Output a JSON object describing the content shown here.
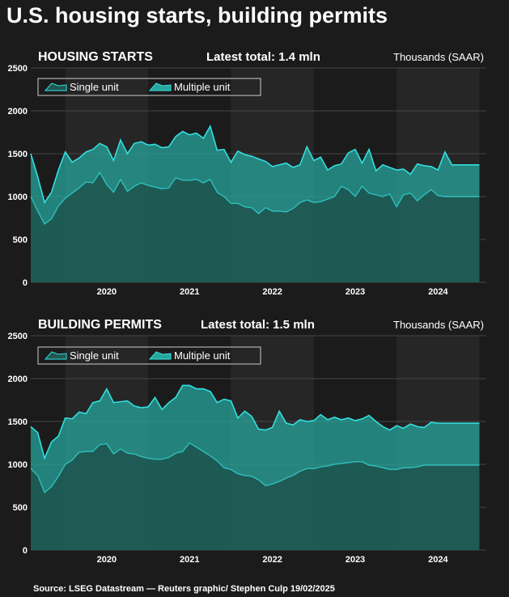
{
  "title": "U.S. housing starts, building permits",
  "source": "Source: LSEG Datastream — Reuters graphic/ Stephen Culp 19/02/2025",
  "colors": {
    "background": "#1b1b1b",
    "band": "#262626",
    "single_fill": "#1f5752",
    "multi_fill": "#27a69c",
    "line": "#34dfe0",
    "grid": "#555555"
  },
  "chart_data": [
    {
      "type": "area",
      "title": "HOUSING STARTS",
      "subtitle": "Latest total: 1.4 mln",
      "ylabel": "Thousands (SAAR)",
      "ylim": [
        0,
        2500
      ],
      "yticks": [
        0,
        500,
        1000,
        1500,
        2000,
        2500
      ],
      "xlim": [
        2019.583,
        2025.083
      ],
      "year_labels": [
        "2020",
        "2021",
        "2022",
        "2023",
        "2024"
      ],
      "legend": {
        "placement": "top-left",
        "entries": [
          "Single unit",
          "Multiple unit"
        ]
      },
      "grid": true,
      "x": [
        2019.583,
        2019.667,
        2019.75,
        2019.833,
        2019.917,
        2020.0,
        2020.083,
        2020.167,
        2020.25,
        2020.333,
        2020.417,
        2020.5,
        2020.583,
        2020.667,
        2020.75,
        2020.833,
        2020.917,
        2021.0,
        2021.083,
        2021.167,
        2021.25,
        2021.333,
        2021.417,
        2021.5,
        2021.583,
        2021.667,
        2021.75,
        2021.833,
        2021.917,
        2022.0,
        2022.083,
        2022.167,
        2022.25,
        2022.333,
        2022.417,
        2022.5,
        2022.583,
        2022.667,
        2022.75,
        2022.833,
        2022.917,
        2023.0,
        2023.083,
        2023.167,
        2023.25,
        2023.333,
        2023.417,
        2023.5,
        2023.583,
        2023.667,
        2023.75,
        2023.833,
        2023.917,
        2024.0,
        2024.083,
        2024.167,
        2024.25,
        2024.333,
        2024.417,
        2024.5,
        2024.583,
        2024.667,
        2024.75,
        2024.833,
        2024.917,
        2025.0
      ],
      "series": [
        {
          "name": "Single unit",
          "values": [
            1000,
            830,
            680,
            740,
            890,
            980,
            1040,
            1100,
            1170,
            1160,
            1280,
            1140,
            1050,
            1200,
            1060,
            1120,
            1160,
            1130,
            1110,
            1090,
            1100,
            1220,
            1190,
            1190,
            1200,
            1160,
            1200,
            1050,
            1000,
            920,
            920,
            880,
            870,
            800,
            870,
            830,
            830,
            820,
            860,
            930,
            960,
            930,
            940,
            970,
            1000,
            1120,
            1080,
            1000,
            1120,
            1040,
            1020,
            1000,
            1030,
            880,
            1020,
            1040,
            950,
            1020,
            1080,
            1010,
            1000,
            1000,
            1000,
            1000,
            1000,
            1000
          ]
        },
        {
          "name": "Multiple unit",
          "values": [
            1500,
            1230,
            930,
            1050,
            1310,
            1520,
            1400,
            1450,
            1520,
            1550,
            1620,
            1580,
            1420,
            1660,
            1500,
            1620,
            1640,
            1600,
            1610,
            1570,
            1580,
            1700,
            1760,
            1720,
            1740,
            1680,
            1820,
            1540,
            1550,
            1400,
            1530,
            1490,
            1470,
            1440,
            1410,
            1350,
            1370,
            1390,
            1340,
            1370,
            1580,
            1420,
            1460,
            1310,
            1360,
            1380,
            1510,
            1550,
            1390,
            1550,
            1300,
            1370,
            1340,
            1310,
            1320,
            1260,
            1380,
            1360,
            1350,
            1310,
            1520,
            1370,
            1370,
            1370,
            1370,
            1370
          ]
        }
      ]
    },
    {
      "type": "area",
      "title": "BUILDING PERMITS",
      "subtitle": "Latest total: 1.5 mln",
      "ylabel": "Thousands (SAAR)",
      "ylim": [
        0,
        2500
      ],
      "yticks": [
        0,
        500,
        1000,
        1500,
        2000,
        2500
      ],
      "xlim": [
        2019.583,
        2025.083
      ],
      "year_labels": [
        "2020",
        "2021",
        "2022",
        "2023",
        "2024"
      ],
      "legend": {
        "placement": "top-left",
        "entries": [
          "Single unit",
          "Multiple unit"
        ]
      },
      "grid": true,
      "x": [
        2019.583,
        2019.667,
        2019.75,
        2019.833,
        2019.917,
        2020.0,
        2020.083,
        2020.167,
        2020.25,
        2020.333,
        2020.417,
        2020.5,
        2020.583,
        2020.667,
        2020.75,
        2020.833,
        2020.917,
        2021.0,
        2021.083,
        2021.167,
        2021.25,
        2021.333,
        2021.417,
        2021.5,
        2021.583,
        2021.667,
        2021.75,
        2021.833,
        2021.917,
        2022.0,
        2022.083,
        2022.167,
        2022.25,
        2022.333,
        2022.417,
        2022.5,
        2022.583,
        2022.667,
        2022.75,
        2022.833,
        2022.917,
        2023.0,
        2023.083,
        2023.167,
        2023.25,
        2023.333,
        2023.417,
        2023.5,
        2023.583,
        2023.667,
        2023.75,
        2023.833,
        2023.917,
        2024.0,
        2024.083,
        2024.167,
        2024.25,
        2024.333,
        2024.417,
        2024.5,
        2024.583,
        2024.667,
        2024.75,
        2024.833,
        2024.917,
        2025.0
      ],
      "series": [
        {
          "name": "Single unit",
          "values": [
            950,
            870,
            670,
            740,
            860,
            1000,
            1050,
            1140,
            1150,
            1150,
            1230,
            1240,
            1120,
            1180,
            1130,
            1120,
            1090,
            1070,
            1060,
            1060,
            1080,
            1130,
            1150,
            1250,
            1200,
            1150,
            1100,
            1040,
            960,
            940,
            890,
            870,
            860,
            820,
            750,
            770,
            800,
            840,
            870,
            920,
            950,
            950,
            970,
            980,
            1000,
            1010,
            1020,
            1030,
            1030,
            990,
            980,
            960,
            940,
            940,
            960,
            960,
            970,
            990,
            990,
            990,
            990,
            990,
            990,
            990,
            990,
            990
          ]
        },
        {
          "name": "Multiple unit",
          "values": [
            1440,
            1370,
            1070,
            1260,
            1330,
            1540,
            1530,
            1610,
            1590,
            1720,
            1740,
            1880,
            1720,
            1730,
            1740,
            1680,
            1660,
            1670,
            1780,
            1640,
            1720,
            1780,
            1920,
            1920,
            1880,
            1880,
            1850,
            1720,
            1760,
            1740,
            1540,
            1620,
            1560,
            1410,
            1400,
            1430,
            1620,
            1480,
            1460,
            1520,
            1500,
            1510,
            1580,
            1520,
            1550,
            1520,
            1540,
            1510,
            1530,
            1570,
            1500,
            1440,
            1400,
            1450,
            1420,
            1470,
            1440,
            1430,
            1490,
            1480,
            1480,
            1480,
            1480,
            1480,
            1480,
            1480
          ]
        }
      ]
    }
  ]
}
